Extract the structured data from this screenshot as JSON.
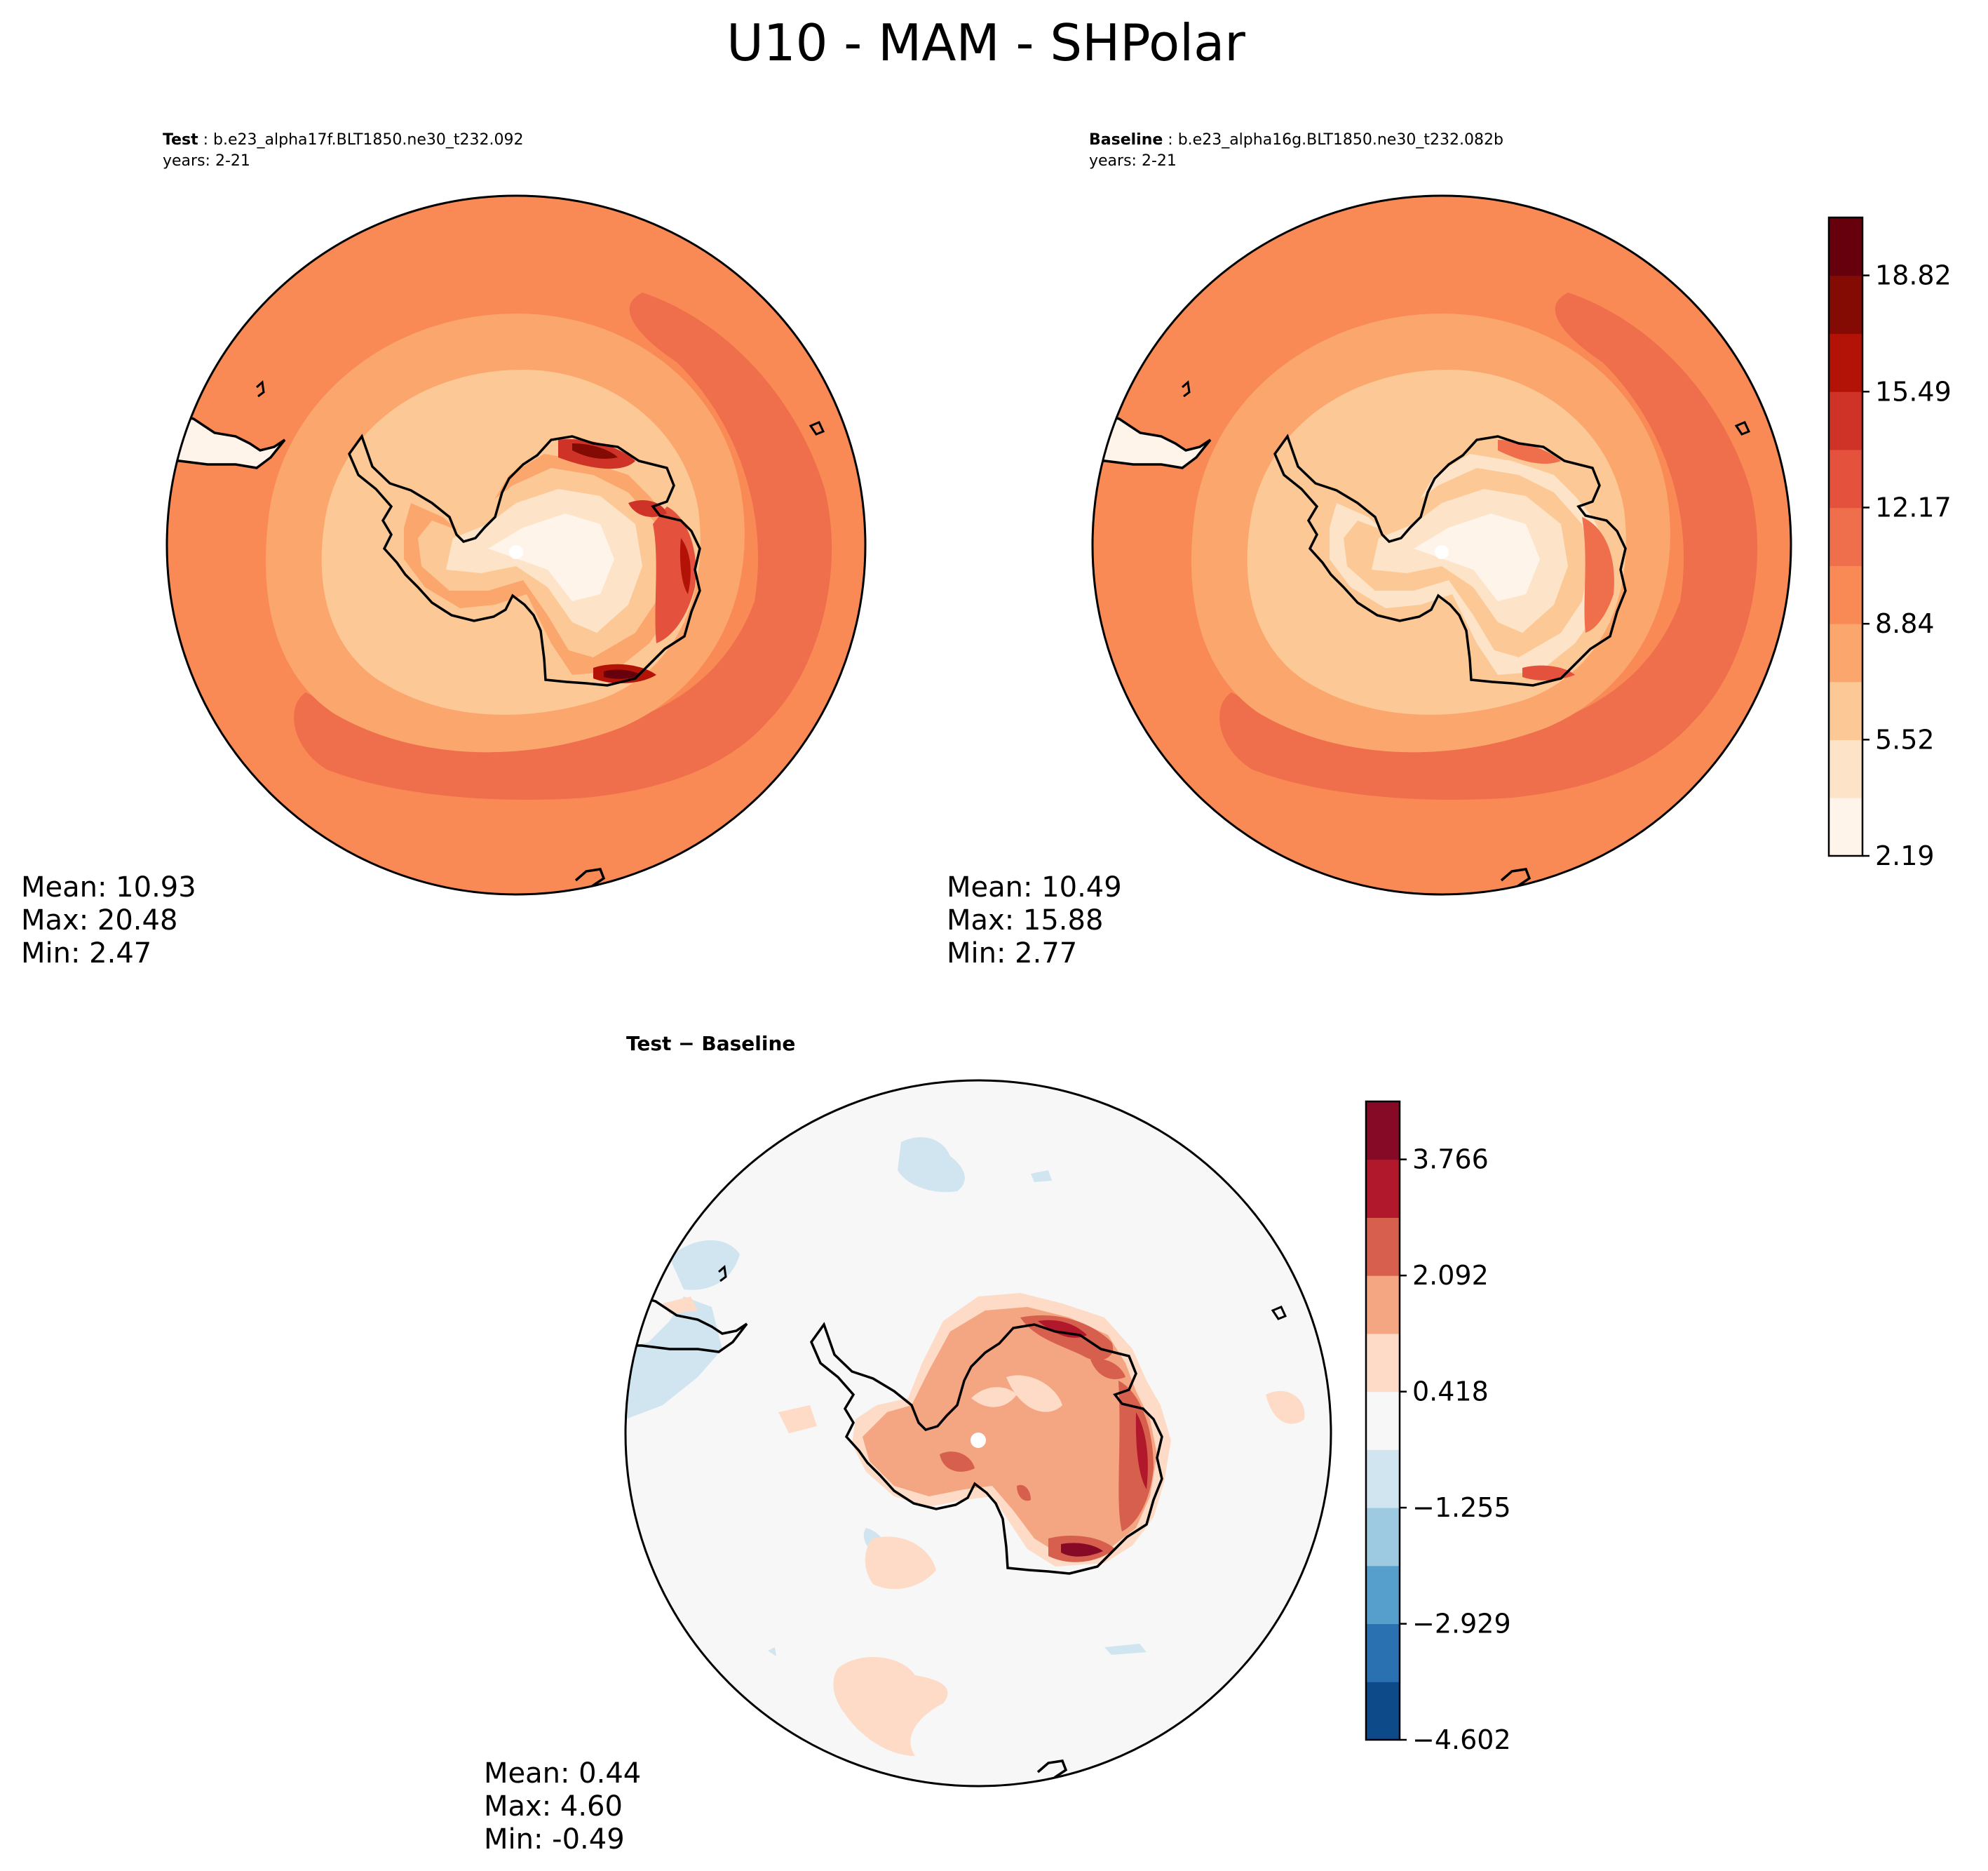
{
  "figure": {
    "title": "U10 - MAM - SHPolar"
  },
  "panels": {
    "test": {
      "label": "Test",
      "case": "b.e23_alpha17f.BLT1850.ne30_t232.092",
      "years": "years: 2-21",
      "stats": {
        "mean": "Mean: 10.93",
        "max": "Max: 20.48",
        "min": "Min:  2.47"
      }
    },
    "baseline": {
      "label": "Baseline",
      "case": "b.e23_alpha16g.BLT1850.ne30_t232.082b",
      "years": "years: 2-21",
      "stats": {
        "mean": "Mean: 10.49",
        "max": "Max: 15.88",
        "min": "Min:  2.77"
      }
    },
    "diff": {
      "title": "Test − Baseline",
      "stats": {
        "mean": "Mean:  0.44",
        "max": "Max:  4.60",
        "min": "Min: -0.49"
      }
    }
  },
  "colorbars": {
    "abs": {
      "colors": [
        "#fff5eb",
        "#fee6ce",
        "#fdd0a2",
        "#fdae6b",
        "#fd8d3c",
        "#f16913",
        "#e34a33",
        "#d03020",
        "#b30000",
        "#7f0000",
        "#67000d"
      ],
      "display_colors": [
        "#fff4e9",
        "#fde4c8",
        "#fcc996",
        "#fba66c",
        "#f98a55",
        "#ef6e4b",
        "#e4513c",
        "#cf3327",
        "#b31206",
        "#840b04",
        "#67000d"
      ],
      "ticks": [
        "2.19",
        "5.52",
        "8.84",
        "12.17",
        "15.49",
        "18.82"
      ],
      "tick_values": [
        2.19,
        5.52,
        8.84,
        12.17,
        15.49,
        18.82
      ],
      "range": [
        2.19,
        20.48
      ]
    },
    "diff": {
      "display_colors": [
        "#0c4a8a",
        "#2a71b2",
        "#569fcc",
        "#9ecae1",
        "#d1e5f0",
        "#f7f7f7",
        "#fddbc7",
        "#f4a582",
        "#d6604d",
        "#b2182b",
        "#860a25"
      ],
      "ticks": [
        "−4.602",
        "−2.929",
        "−1.255",
        "0.418",
        "2.092",
        "3.766"
      ],
      "tick_values": [
        -4.602,
        -2.929,
        -1.255,
        0.418,
        2.092,
        3.766
      ],
      "range": [
        -4.602,
        4.602
      ]
    }
  }
}
